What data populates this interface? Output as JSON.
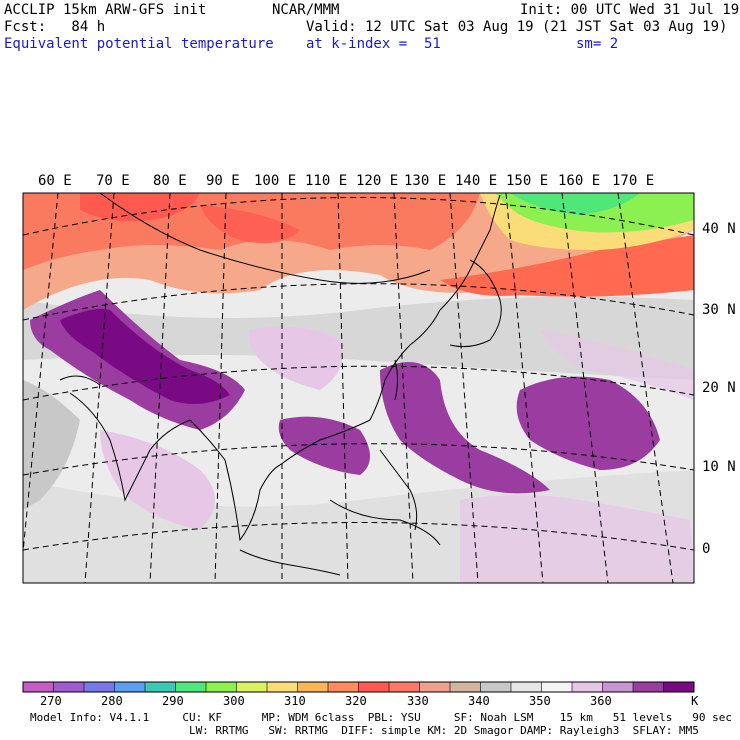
{
  "header": {
    "line1_left": "ACCLIP 15km ARW-GFS init",
    "line1_center": "NCAR/MMM",
    "line1_right": "Init: 00 UTC Wed 31 Jul 19",
    "line2_left": "Fcst:   84 h",
    "line2_right": "Valid: 12 UTC Sat 03 Aug 19 (21 JST Sat 03 Aug 19)",
    "line3_left": "Equivalent potential temperature",
    "line3_center": "at k-index =  51",
    "line3_right": "sm= 2"
  },
  "map": {
    "longitude_labels": [
      "60 E",
      "70 E",
      "80 E",
      "90 E",
      "100 E",
      "110 E",
      "120 E",
      "130 E",
      "140 E",
      "150 E",
      "160 E",
      "170 E"
    ],
    "latitude_labels": [
      "40 N",
      "30 N",
      "20 N",
      "10 N",
      "0"
    ]
  },
  "colorbar": {
    "unit": "K",
    "tick_labels": [
      "270",
      "280",
      "290",
      "300",
      "310",
      "320",
      "330",
      "340",
      "350",
      "360"
    ],
    "colors": [
      "#c85ac8",
      "#a05ad2",
      "#7878e6",
      "#5aa0f0",
      "#3cc8b4",
      "#50e678",
      "#8cf050",
      "#dcf064",
      "#fadc78",
      "#fab45a",
      "#ff8c5a",
      "#ff5a50",
      "#fa7864",
      "#f0a08c",
      "#d2b4a0",
      "#c8c8c8",
      "#e6e6e6",
      "#f5f5f5",
      "#e6c8e6",
      "#c896d2",
      "#9a3ca0",
      "#7a0a84"
    ]
  },
  "model_info": {
    "line1": "Model Info: V4.1.1     CU: KF      MP: WDM 6class  PBL: YSU     SF: Noah LSM    15 km   51 levels   90 sec",
    "line2": "                        LW: RRTMG   SW: RRTMG  DIFF: simple KM: 2D Smagor DAMP: Rayleigh3  SFLAY: MM5"
  }
}
